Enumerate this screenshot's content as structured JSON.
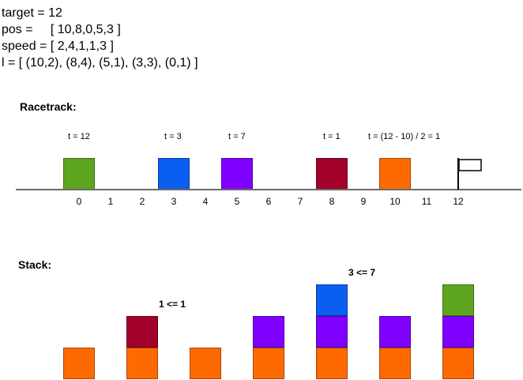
{
  "code": {
    "line1": "target = 12",
    "line2": "pos =     [ 10,8,0,5,3 ]",
    "line3": "speed = [ 2,4,1,1,3 ]",
    "line4": "l = [ (10,2), (8,4), (5,1), (3,3), (0,1) ]"
  },
  "racetrack": {
    "heading": "Racetrack:",
    "time_labels": [
      "t = 12",
      "t = 3",
      "t = 7",
      "t = 1",
      "t = (12 - 10) / 2 = 1"
    ],
    "ticks": [
      "0",
      "1",
      "2",
      "3",
      "4",
      "5",
      "6",
      "7",
      "8",
      "9",
      "10",
      "11",
      "12"
    ],
    "cars": [
      {
        "pos": 0,
        "color": "#5ea51f"
      },
      {
        "pos": 3,
        "color": "#0a5ef0"
      },
      {
        "pos": 5,
        "color": "#7f00ff"
      },
      {
        "pos": 8,
        "color": "#a3002c"
      },
      {
        "pos": 10,
        "color": "#ff6a00"
      }
    ],
    "flag_icon": "finish-flag-icon"
  },
  "stack": {
    "heading": "Stack:",
    "comparisons": [
      "1 <= 1",
      "3 <= 7"
    ],
    "columns": [
      [
        "#ff6a00"
      ],
      [
        "#ff6a00",
        "#a3002c"
      ],
      [
        "#ff6a00"
      ],
      [
        "#ff6a00",
        "#7f00ff"
      ],
      [
        "#ff6a00",
        "#7f00ff",
        "#0a5ef0"
      ],
      [
        "#ff6a00",
        "#7f00ff"
      ],
      [
        "#ff6a00",
        "#7f00ff",
        "#5ea51f"
      ]
    ]
  }
}
